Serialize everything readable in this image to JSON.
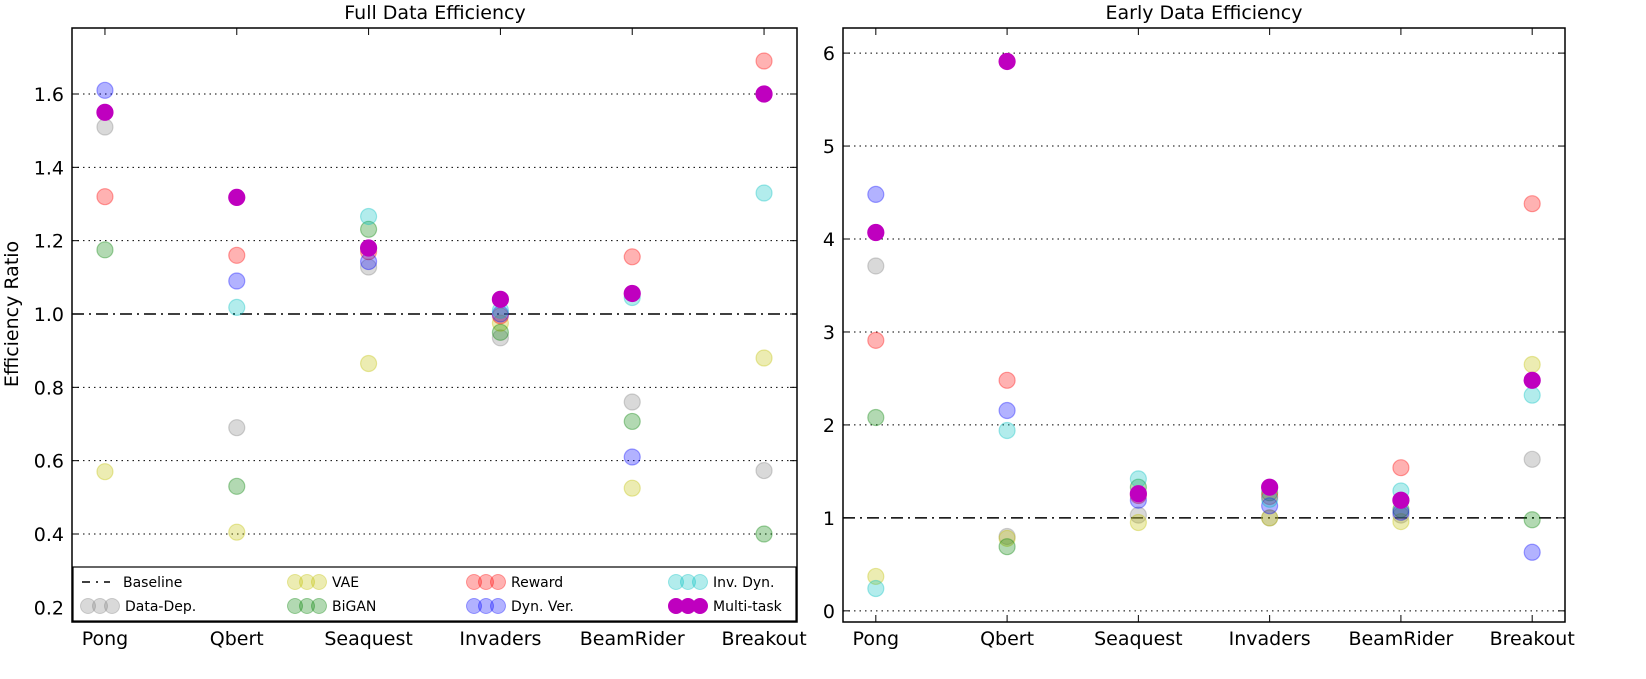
{
  "chart_data": [
    {
      "type": "scatter",
      "title": "Full Data Efficiency",
      "xlabel": "",
      "ylabel": "Efficiency Ratio",
      "categories": [
        "Pong",
        "Qbert",
        "Seaquest",
        "Invaders",
        "BeamRider",
        "Breakout"
      ],
      "ylim": [
        0.16,
        1.78
      ],
      "yticks": [
        "0.2",
        "0.4",
        "0.6",
        "0.8",
        "1.0",
        "1.2",
        "1.4",
        "1.6"
      ],
      "grid": "horizontal dotted",
      "baseline": 1.0,
      "legend_placement": "bottom (inside)",
      "series": [
        {
          "name": "Data-Dep.",
          "color": "#808080",
          "values": [
            1.51,
            0.69,
            1.128,
            0.935,
            0.76,
            0.573
          ]
        },
        {
          "name": "VAE",
          "color": "#bfbf00",
          "values": [
            0.57,
            0.405,
            0.865,
            0.975,
            0.525,
            0.88
          ]
        },
        {
          "name": "BiGAN",
          "color": "#008000",
          "values": [
            1.175,
            0.53,
            1.231,
            0.95,
            0.707,
            0.4
          ]
        },
        {
          "name": "Reward",
          "color": "#ff0000",
          "values": [
            1.32,
            1.16,
            1.17,
            0.995,
            1.156,
            1.69
          ]
        },
        {
          "name": "Dyn. Ver.",
          "color": "#0000ff",
          "values": [
            1.61,
            1.09,
            1.143,
            1.0,
            0.61,
            null
          ]
        },
        {
          "name": "Inv. Dyn.",
          "color": "#00bfbf",
          "values": [
            null,
            1.018,
            1.266,
            1.01,
            1.045,
            1.33
          ]
        },
        {
          "name": "Multi-task",
          "color": "#bf00bf",
          "values": [
            1.55,
            1.318,
            1.18,
            1.04,
            1.056,
            1.6
          ]
        }
      ]
    },
    {
      "type": "scatter",
      "title": "Early Data Efficiency",
      "xlabel": "",
      "ylabel": "",
      "categories": [
        "Pong",
        "Qbert",
        "Seaquest",
        "Invaders",
        "BeamRider",
        "Breakout"
      ],
      "ylim": [
        -0.12,
        6.27
      ],
      "yticks": [
        "0",
        "1",
        "2",
        "3",
        "4",
        "5",
        "6"
      ],
      "grid": "horizontal dotted",
      "baseline": 1.0,
      "series": [
        {
          "name": "Data-Dep.",
          "color": "#808080",
          "values": [
            3.71,
            0.8,
            1.03,
            1.0,
            1.03,
            1.63
          ]
        },
        {
          "name": "VAE",
          "color": "#bfbf00",
          "values": [
            0.37,
            0.78,
            0.95,
            1.0,
            0.96,
            2.65
          ]
        },
        {
          "name": "BiGAN",
          "color": "#008000",
          "values": [
            2.08,
            0.69,
            1.33,
            1.27,
            1.09,
            0.98
          ]
        },
        {
          "name": "Reward",
          "color": "#ff0000",
          "values": [
            2.91,
            2.48,
            1.24,
            1.23,
            1.54,
            4.38
          ]
        },
        {
          "name": "Dyn. Ver.",
          "color": "#0000ff",
          "values": [
            4.48,
            2.155,
            1.19,
            1.13,
            1.06,
            0.63
          ]
        },
        {
          "name": "Inv. Dyn.",
          "color": "#00bfbf",
          "values": [
            0.24,
            1.94,
            1.42,
            1.2,
            1.29,
            2.32
          ]
        },
        {
          "name": "Multi-task",
          "color": "#bf00bf",
          "values": [
            4.07,
            5.91,
            1.26,
            1.33,
            1.19,
            2.48
          ]
        }
      ]
    }
  ],
  "legend": {
    "baseline_label": "Baseline",
    "entries": [
      "Data-Dep.",
      "VAE",
      "BiGAN",
      "Reward",
      "Dyn. Ver.",
      "Inv. Dyn.",
      "Multi-task"
    ]
  }
}
